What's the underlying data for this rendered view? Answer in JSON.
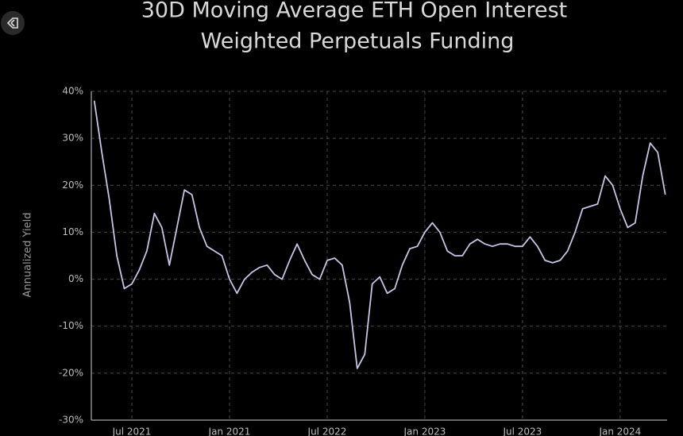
{
  "chart_data": {
    "type": "line",
    "title": [
      "30D Moving Average ETH Open Interest",
      "Weighted Perpetuals Funding"
    ],
    "y_label": "Annualized Yield",
    "color": "#c6c5e6",
    "grid": true,
    "categories": [
      null,
      null,
      null,
      null,
      null,
      "Jul 2021",
      null,
      null,
      null,
      null,
      null,
      null,
      null,
      null,
      null,
      null,
      null,
      null,
      "Jan 2021",
      null,
      null,
      null,
      null,
      null,
      null,
      null,
      null,
      null,
      null,
      null,
      null,
      "Jul 2022",
      null,
      null,
      null,
      null,
      null,
      null,
      null,
      null,
      null,
      null,
      null,
      null,
      "Jan 2023",
      null,
      null,
      null,
      null,
      null,
      null,
      null,
      null,
      null,
      null,
      null,
      null,
      "Jul 2023",
      null,
      null,
      null,
      null,
      null,
      null,
      null,
      null,
      null,
      null,
      null,
      null,
      "Jan 2024",
      null,
      null,
      null,
      null,
      null,
      null
    ],
    "values": [
      38,
      27,
      17,
      5,
      -2,
      -1,
      2,
      6,
      14,
      11,
      3,
      11,
      19,
      18,
      11,
      7,
      6,
      5,
      0,
      -3,
      0,
      1.5,
      2.5,
      3,
      1,
      0,
      4,
      7.5,
      4,
      1,
      0,
      4,
      4.5,
      3,
      -5,
      -19,
      -16,
      -1,
      0.5,
      -3,
      -2,
      3,
      6.5,
      7,
      10,
      12,
      10,
      6,
      5,
      5,
      7.5,
      8.5,
      7.5,
      7,
      7.5,
      7.5,
      7,
      7,
      9,
      7,
      4,
      3.5,
      4,
      6,
      10,
      15,
      15.5,
      16,
      22,
      20,
      15,
      11,
      12,
      22,
      29,
      27,
      18
    ],
    "ylim": [
      -30,
      40
    ],
    "yticks": [
      {
        "value": -30,
        "label": "-30%"
      },
      {
        "value": -20,
        "label": "-20%"
      },
      {
        "value": -10,
        "label": "-10%"
      },
      {
        "value": 0,
        "label": "0%"
      },
      {
        "value": 10,
        "label": "10%"
      },
      {
        "value": 20,
        "label": "20%"
      },
      {
        "value": 30,
        "label": "30%"
      },
      {
        "value": 40,
        "label": "40%"
      }
    ]
  }
}
